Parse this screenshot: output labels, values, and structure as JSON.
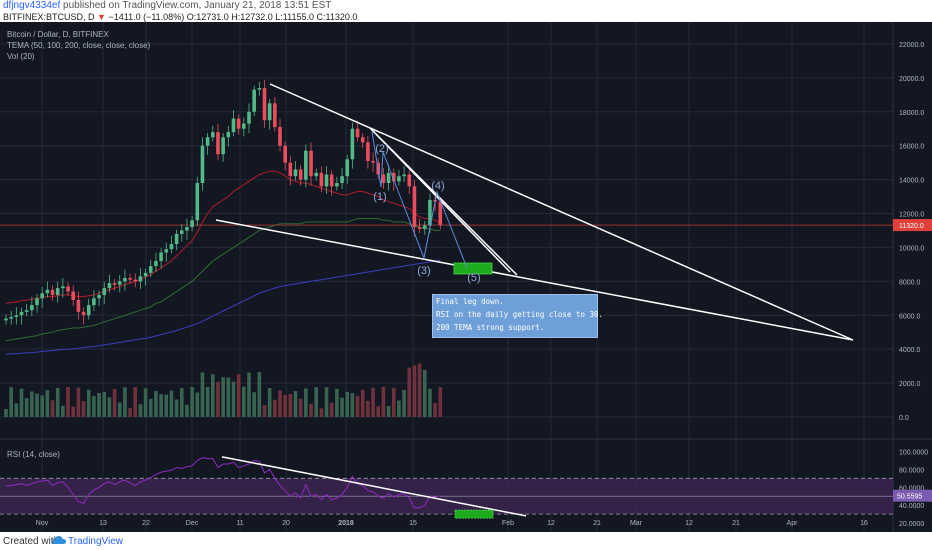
{
  "header": {
    "user": "dfjngv4334ef",
    "published": " published on TradingView.com, January 21, 2018 13:51 EST",
    "symbol_line_prefix": "BITFINEX:BTCUSD, D",
    "change": "−1411.0 (−11.08%)",
    "ohlc": "O:12731.0 H:12732.0 L:11155.0 C:11320.0"
  },
  "legend": {
    "title": "Bitcoin / Dollar, D, BITFINEX",
    "tema": "TEMA (50, 100, 200, close, close, close)",
    "vol": "Vol (20)",
    "rsi": "RSI (14, close)"
  },
  "note": {
    "line1": "Final leg down.",
    "line2": "RSI on the daily getting close to 30.",
    "line3": "200 TEMA strong support."
  },
  "footer": {
    "created": "Created with",
    "brand": "TradingView"
  },
  "colors": {
    "background": "#131722",
    "grid": "#242a38",
    "up": "#53b987",
    "down": "#eb4d5c",
    "price_line": "#e0403a",
    "tema50": "#b01d2a",
    "tema100": "#2f6d33",
    "tema200": "#3a3ec0",
    "rsi": "#8e2cc2",
    "rsi_band": "#3c2450",
    "trendline": "#ffffff",
    "target_box": "#1dab1d",
    "wave": "#5b8ee0",
    "note_bg": "#6f9fd8"
  },
  "chart_data": [
    {
      "type": "candlestick",
      "title": "Bitcoin / Dollar, D, BITFINEX",
      "ylim": [
        0,
        23000
      ],
      "y_ticks": [
        0,
        2000,
        4000,
        6000,
        8000,
        10000,
        12000,
        14000,
        16000,
        18000,
        20000,
        22000
      ],
      "y_tick_labels": [
        "0.0",
        "2000.0",
        "4000.0",
        "6000.0",
        "8000.0",
        "10000.0",
        "12000.0",
        "14000.0",
        "16000.0",
        "18000.0",
        "20000.0",
        "22000.0"
      ],
      "x_ticks": [
        "Nov",
        "13",
        "22",
        "Dec",
        "11",
        "20",
        "2018",
        "15",
        "Feb",
        "12",
        "21",
        "Mar",
        "12",
        "21",
        "Apr",
        "16"
      ],
      "last_price": 11320.0,
      "last_price_label": "11320.0",
      "close_series": [
        5800,
        5900,
        6000,
        6200,
        6300,
        6600,
        7000,
        7300,
        7500,
        7200,
        7600,
        7700,
        7400,
        6900,
        6200,
        6000,
        6600,
        7000,
        7200,
        7600,
        7900,
        7800,
        8000,
        8200,
        8100,
        8000,
        8300,
        8500,
        8900,
        9200,
        9700,
        9900,
        10200,
        10800,
        11000,
        11200,
        11600,
        13800,
        16000,
        16500,
        16800,
        15500,
        16500,
        16800,
        17600,
        17000,
        17300,
        18000,
        19300,
        19400,
        17500,
        18500,
        17100,
        16000,
        15000,
        14200,
        14600,
        14000,
        15700,
        14200,
        14400,
        13600,
        14300,
        13600,
        13800,
        14200,
        15200,
        17000,
        16500,
        16200,
        15100,
        15000,
        14300,
        13800,
        14400,
        13900,
        14200,
        14300,
        13600,
        11200,
        11100,
        11300,
        12800,
        12700,
        11320
      ],
      "tema50": [
        6700,
        6750,
        6800,
        6850,
        6900,
        6950,
        7000,
        7050,
        7100,
        7100,
        7150,
        7200,
        7200,
        7150,
        7100,
        7100,
        7150,
        7200,
        7300,
        7400,
        7500,
        7600,
        7700,
        7800,
        7900,
        8000,
        8100,
        8250,
        8400,
        8600,
        8800,
        9000,
        9200,
        9500,
        9800,
        10100,
        10400,
        10900,
        11500,
        12000,
        12400,
        12600,
        12800,
        13000,
        13300,
        13500,
        13700,
        13900,
        14100,
        14300,
        14400,
        14500,
        14500,
        14400,
        14200,
        14000,
        13900,
        13800,
        13800,
        13700,
        13600,
        13500,
        13400,
        13300,
        13200,
        13100,
        13100,
        13200,
        13300,
        13300,
        13200,
        13100,
        13000,
        12800,
        12700,
        12600,
        12500,
        12400,
        12300,
        12000,
        11800,
        11700,
        11700,
        11600,
        11400
      ],
      "tema100": [
        4500,
        4550,
        4600,
        4650,
        4700,
        4750,
        4800,
        4900,
        4950,
        5000,
        5100,
        5150,
        5200,
        5250,
        5250,
        5300,
        5350,
        5400,
        5500,
        5600,
        5700,
        5800,
        5900,
        6000,
        6100,
        6200,
        6300,
        6400,
        6500,
        6700,
        6800,
        7000,
        7200,
        7400,
        7600,
        7800,
        8000,
        8300,
        8600,
        8900,
        9200,
        9400,
        9600,
        9800,
        10000,
        10200,
        10400,
        10600,
        10800,
        11000,
        11100,
        11200,
        11300,
        11400,
        11400,
        11400,
        11400,
        11400,
        11500,
        11500,
        11500,
        11500,
        11500,
        11500,
        11500,
        11500,
        11500,
        11600,
        11700,
        11700,
        11700,
        11700,
        11700,
        11600,
        11600,
        11500,
        11500,
        11500,
        11400,
        11300,
        11200,
        11100,
        11100,
        11000,
        11000
      ],
      "tema200": [
        3700,
        3720,
        3740,
        3760,
        3780,
        3800,
        3830,
        3860,
        3890,
        3920,
        3950,
        3980,
        4000,
        4030,
        4060,
        4100,
        4130,
        4160,
        4200,
        4250,
        4300,
        4350,
        4400,
        4450,
        4500,
        4550,
        4600,
        4650,
        4700,
        4780,
        4860,
        4940,
        5020,
        5100,
        5200,
        5300,
        5400,
        5500,
        5650,
        5800,
        5950,
        6100,
        6250,
        6400,
        6550,
        6700,
        6850,
        7000,
        7150,
        7300,
        7400,
        7500,
        7600,
        7700,
        7750,
        7800,
        7850,
        7900,
        7950,
        8000,
        8050,
        8100,
        8150,
        8200,
        8250,
        8300,
        8350,
        8400,
        8450,
        8500,
        8550,
        8600,
        8650,
        8700,
        8750,
        8800,
        8850,
        8900,
        8950,
        9000,
        9050,
        9100,
        9150,
        9200,
        9250
      ],
      "annotations": [
        "(1)",
        "(2)",
        "(3)",
        "(4)",
        "(5)"
      ]
    },
    {
      "type": "line",
      "title": "RSI (14, close)",
      "ylim": [
        10,
        105
      ],
      "y_ticks": [
        20,
        40,
        60,
        80,
        100
      ],
      "y_tick_labels": [
        "20.0000",
        "40.0000",
        "60.0000",
        "80.0000",
        "100.0000"
      ],
      "levels": [
        30,
        70
      ],
      "last_value": 50.5595,
      "last_value_label": "50.5595",
      "values": [
        61,
        62,
        63,
        64,
        62,
        64,
        66,
        67,
        68,
        62,
        65,
        66,
        60,
        52,
        44,
        42,
        52,
        57,
        60,
        64,
        66,
        63,
        66,
        68,
        65,
        62,
        66,
        68,
        71,
        74,
        77,
        78,
        79,
        82,
        81,
        83,
        84,
        90,
        93,
        92,
        92,
        82,
        86,
        86,
        88,
        82,
        84,
        86,
        90,
        89,
        76,
        80,
        70,
        62,
        56,
        50,
        54,
        48,
        63,
        50,
        52,
        46,
        52,
        46,
        48,
        52,
        60,
        72,
        64,
        62,
        56,
        55,
        50,
        48,
        53,
        49,
        52,
        53,
        48,
        37,
        37,
        40,
        50,
        49,
        50.5595
      ]
    }
  ]
}
